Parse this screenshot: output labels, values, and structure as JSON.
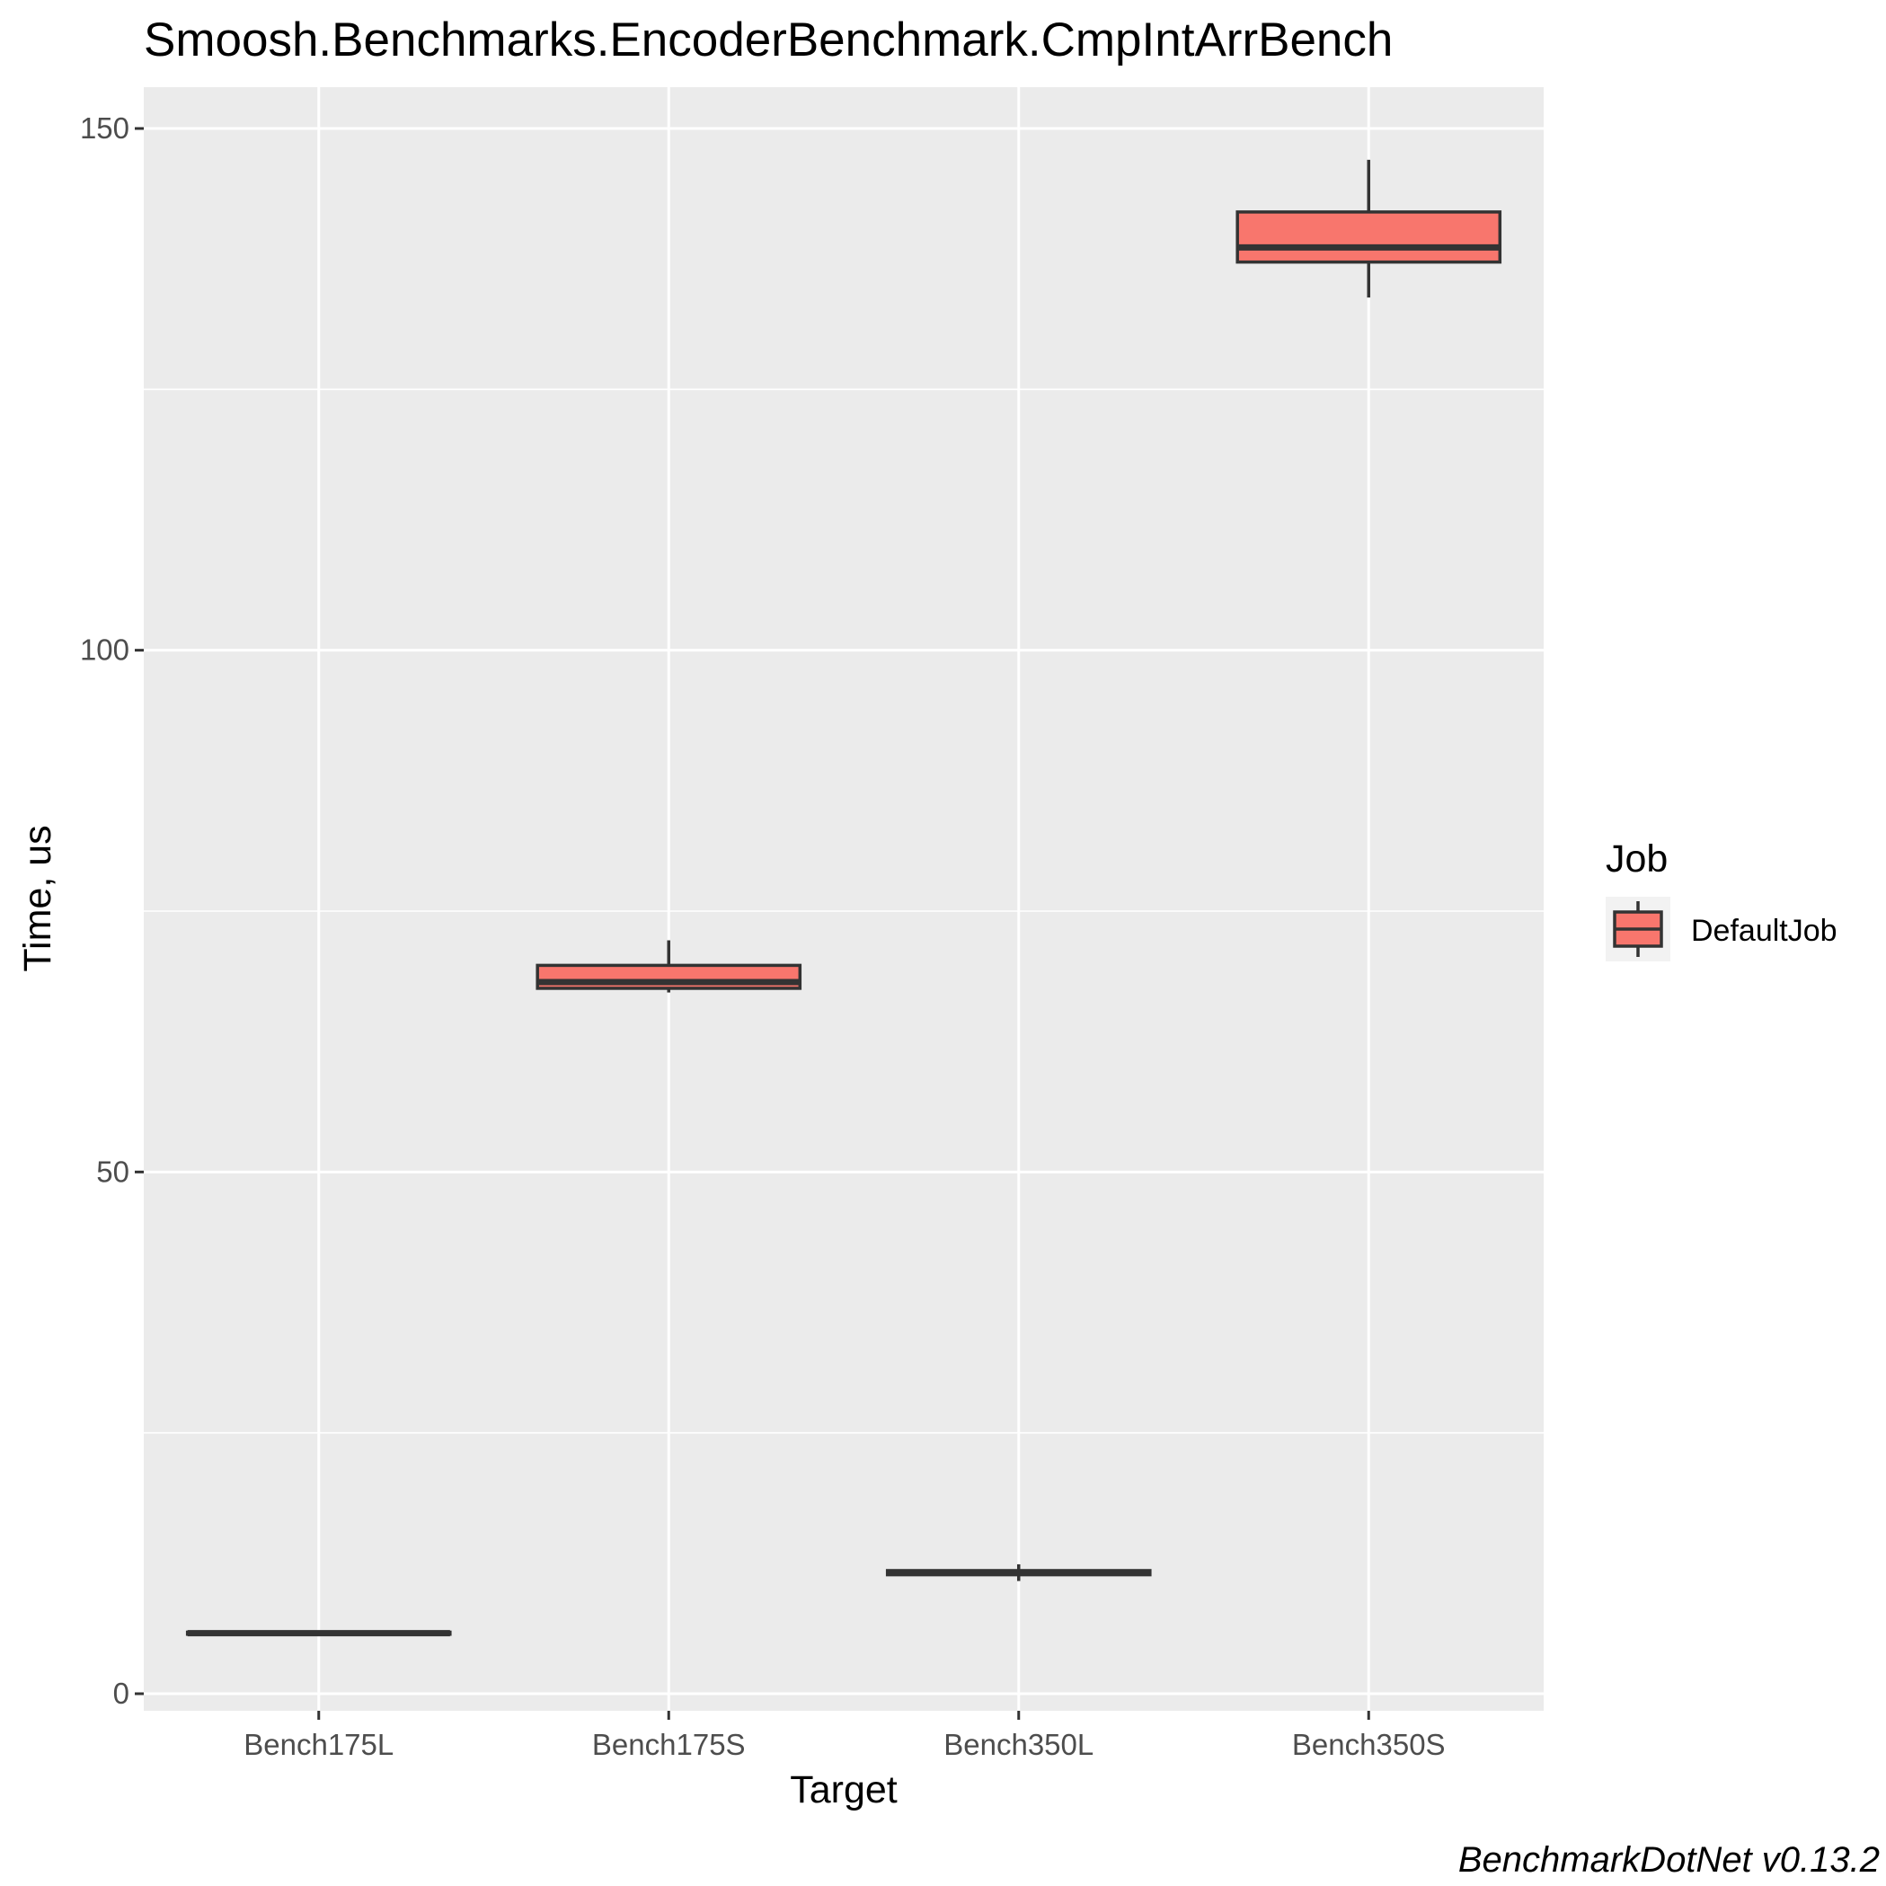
{
  "chart_data": {
    "type": "boxplot",
    "title": "Smoosh.Benchmarks.EncoderBenchmark.CmpIntArrBench",
    "xlabel": "Target",
    "ylabel": "Time, us",
    "categories": [
      "Bench175L",
      "Bench175S",
      "Bench350L",
      "Bench350S"
    ],
    "ylim": [
      0,
      150
    ],
    "y_ticks": [
      0,
      50,
      100,
      150
    ],
    "grid": true,
    "legend": {
      "title": "Job",
      "position": "right",
      "entries": [
        "DefaultJob"
      ]
    },
    "fill_color": "#F8766D",
    "series": [
      {
        "name": "DefaultJob",
        "boxes": [
          {
            "category": "Bench175L",
            "min": 5.6,
            "q1": 5.7,
            "median": 5.8,
            "q3": 5.9,
            "max": 6.0
          },
          {
            "category": "Bench175S",
            "min": 67.2,
            "q1": 67.6,
            "median": 68.2,
            "q3": 69.8,
            "max": 72.2
          },
          {
            "category": "Bench350L",
            "min": 10.8,
            "q1": 11.4,
            "median": 11.6,
            "q3": 11.8,
            "max": 12.4
          },
          {
            "category": "Bench350S",
            "min": 133.8,
            "q1": 137.2,
            "median": 138.6,
            "q3": 142.0,
            "max": 147.0
          }
        ]
      }
    ],
    "caption": "BenchmarkDotNet v0.13.2"
  }
}
